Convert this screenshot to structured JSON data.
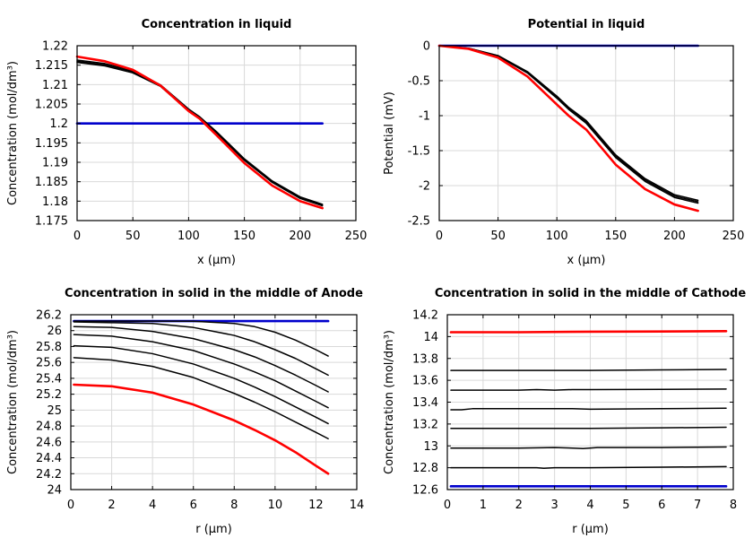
{
  "chart_data": [
    {
      "type": "line",
      "title": "Concentration in liquid",
      "xlabel": "x (µm)",
      "ylabel": "Concentration (mol/dm³)",
      "xlim": [
        0,
        250
      ],
      "ylim": [
        1.175,
        1.22
      ],
      "xticks": [
        0,
        50,
        100,
        150,
        200,
        250
      ],
      "yticks": [
        1.175,
        1.18,
        1.185,
        1.19,
        1.195,
        1.2,
        1.205,
        1.21,
        1.215,
        1.22
      ],
      "ytick_labels": [
        "1.175",
        "1.18",
        "1.185",
        "1.19",
        "1.195",
        "1.2",
        "1.205",
        "1.21",
        "1.215",
        "1.22"
      ],
      "grid": true,
      "series": [
        {
          "color": "#0000cc",
          "width": 2.6,
          "x": [
            0,
            220
          ],
          "y": [
            1.2,
            1.2
          ]
        },
        {
          "color": "#000000",
          "width": 1.5,
          "x": [
            0,
            25,
            50,
            75,
            100,
            110,
            125,
            150,
            175,
            200,
            220
          ],
          "y": [
            1.2157,
            1.2148,
            1.213,
            1.2095,
            1.2032,
            1.2012,
            1.1975,
            1.1905,
            1.1848,
            1.1807,
            1.1788
          ]
        },
        {
          "color": "#000000",
          "width": 1.5,
          "x": [
            0,
            25,
            50,
            75,
            100,
            110,
            125,
            150,
            175,
            200,
            220
          ],
          "y": [
            1.216,
            1.2151,
            1.2133,
            1.2097,
            1.2035,
            1.2015,
            1.1977,
            1.1907,
            1.185,
            1.1809,
            1.179
          ]
        },
        {
          "color": "#000000",
          "width": 1.5,
          "x": [
            0,
            25,
            50,
            75,
            100,
            110,
            125,
            150,
            175,
            200,
            220
          ],
          "y": [
            1.2163,
            1.2154,
            1.2136,
            1.2099,
            1.2037,
            1.2017,
            1.1979,
            1.1909,
            1.1852,
            1.1811,
            1.1792
          ]
        },
        {
          "color": "#ff0000",
          "width": 2.6,
          "x": [
            0,
            25,
            50,
            75,
            100,
            110,
            125,
            150,
            175,
            200,
            220
          ],
          "y": [
            1.2172,
            1.216,
            1.2138,
            1.2097,
            1.2032,
            1.2012,
            1.197,
            1.1898,
            1.184,
            1.18,
            1.1782
          ]
        }
      ]
    },
    {
      "type": "line",
      "title": "Potential in liquid",
      "xlabel": "x (µm)",
      "ylabel": "Potential (mV)",
      "xlim": [
        0,
        250
      ],
      "ylim": [
        -2.5,
        0
      ],
      "xticks": [
        0,
        50,
        100,
        150,
        200,
        250
      ],
      "yticks": [
        -2.5,
        -2,
        -1.5,
        -1,
        -0.5,
        0
      ],
      "ytick_labels": [
        "-2.5",
        "-2",
        "-1.5",
        "-1",
        "-0.5",
        "0"
      ],
      "grid": true,
      "series": [
        {
          "color": "#0000cc",
          "width": 2.6,
          "x": [
            0,
            220
          ],
          "y": [
            0,
            0
          ]
        },
        {
          "color": "#000000",
          "width": 1.5,
          "x": [
            0,
            25,
            50,
            75,
            100,
            110,
            125,
            150,
            175,
            200,
            220
          ],
          "y": [
            0,
            -0.035,
            -0.14,
            -0.37,
            -0.72,
            -0.88,
            -1.07,
            -1.56,
            -1.9,
            -2.13,
            -2.21
          ]
        },
        {
          "color": "#000000",
          "width": 1.5,
          "x": [
            0,
            25,
            50,
            75,
            100,
            110,
            125,
            150,
            175,
            200,
            220
          ],
          "y": [
            0,
            -0.037,
            -0.145,
            -0.38,
            -0.73,
            -0.89,
            -1.09,
            -1.58,
            -1.92,
            -2.15,
            -2.23
          ]
        },
        {
          "color": "#000000",
          "width": 1.5,
          "x": [
            0,
            25,
            50,
            75,
            100,
            110,
            125,
            150,
            175,
            200,
            220
          ],
          "y": [
            0,
            -0.04,
            -0.15,
            -0.39,
            -0.75,
            -0.91,
            -1.11,
            -1.6,
            -1.94,
            -2.17,
            -2.25
          ]
        },
        {
          "color": "#ff0000",
          "width": 2.6,
          "x": [
            0,
            25,
            50,
            75,
            100,
            110,
            125,
            150,
            175,
            200,
            220
          ],
          "y": [
            0,
            -0.045,
            -0.17,
            -0.44,
            -0.84,
            -1.0,
            -1.2,
            -1.7,
            -2.05,
            -2.27,
            -2.36
          ]
        }
      ]
    },
    {
      "type": "line",
      "title": "Concentration in solid in the middle of Anode",
      "xlabel": "r (µm)",
      "ylabel": "Concentration (mol/dm³)",
      "xlim": [
        0,
        14
      ],
      "ylim": [
        24,
        26.2
      ],
      "xticks": [
        0,
        2,
        4,
        6,
        8,
        10,
        12,
        14
      ],
      "yticks": [
        24,
        24.2,
        24.4,
        24.6,
        24.8,
        25,
        25.2,
        25.4,
        25.6,
        25.8,
        26,
        26.2
      ],
      "ytick_labels": [
        "24",
        "24.2",
        "24.4",
        "24.6",
        "24.8",
        "25",
        "25.2",
        "25.4",
        "25.6",
        "25.8",
        "26",
        "26.2"
      ],
      "grid": true,
      "series": [
        {
          "color": "#0000cc",
          "width": 2.6,
          "x": [
            0.15,
            12.6
          ],
          "y": [
            26.12,
            26.12
          ]
        },
        {
          "color": "#000000",
          "width": 1.5,
          "x": [
            0.15,
            2,
            4,
            6,
            8,
            9,
            10,
            11,
            12,
            12.6
          ],
          "y": [
            26.12,
            26.12,
            26.12,
            26.118,
            26.09,
            26.05,
            25.98,
            25.88,
            25.76,
            25.68
          ]
        },
        {
          "color": "#000000",
          "width": 1.5,
          "x": [
            0.15,
            2,
            4,
            6,
            8,
            9,
            10,
            11,
            12,
            12.6
          ],
          "y": [
            26.11,
            26.1,
            26.09,
            26.04,
            25.94,
            25.86,
            25.76,
            25.65,
            25.52,
            25.44
          ]
        },
        {
          "color": "#000000",
          "width": 1.5,
          "x": [
            0.15,
            2,
            4,
            6,
            8,
            9,
            10,
            11,
            12,
            12.6
          ],
          "y": [
            26.05,
            26.04,
            25.99,
            25.9,
            25.76,
            25.67,
            25.56,
            25.44,
            25.31,
            25.23
          ]
        },
        {
          "color": "#000000",
          "width": 1.5,
          "x": [
            0.15,
            2,
            4,
            6,
            8,
            9,
            10,
            11,
            12,
            12.6
          ],
          "y": [
            25.95,
            25.93,
            25.86,
            25.75,
            25.58,
            25.48,
            25.37,
            25.24,
            25.11,
            25.03
          ]
        },
        {
          "color": "#000000",
          "width": 1.5,
          "x": [
            0.15,
            2,
            4,
            6,
            8,
            9,
            10,
            11,
            12,
            12.6
          ],
          "y": [
            25.81,
            25.79,
            25.71,
            25.58,
            25.4,
            25.29,
            25.17,
            25.04,
            24.91,
            24.83
          ]
        },
        {
          "color": "#000000",
          "width": 1.5,
          "x": [
            0.15,
            2,
            4,
            6,
            8,
            9,
            10,
            11,
            12,
            12.6
          ],
          "y": [
            25.66,
            25.63,
            25.55,
            25.41,
            25.21,
            25.1,
            24.98,
            24.85,
            24.72,
            24.64
          ]
        },
        {
          "color": "#ff0000",
          "width": 2.6,
          "x": [
            0.15,
            2,
            4,
            6,
            8,
            9,
            10,
            11,
            12,
            12.6
          ],
          "y": [
            25.32,
            25.3,
            25.22,
            25.07,
            24.87,
            24.75,
            24.62,
            24.47,
            24.3,
            24.2
          ]
        }
      ]
    },
    {
      "type": "line",
      "title": "Concentration in solid in the middle of Cathode",
      "xlabel": "r (µm)",
      "ylabel": "Concentration (mol/dm³)",
      "xlim": [
        0,
        8
      ],
      "ylim": [
        12.6,
        14.2
      ],
      "xticks": [
        0,
        1,
        2,
        3,
        4,
        5,
        6,
        7,
        8
      ],
      "yticks": [
        12.6,
        12.8,
        13,
        13.2,
        13.4,
        13.6,
        13.8,
        14,
        14.2
      ],
      "ytick_labels": [
        "12.6",
        "12.8",
        "13",
        "13.2",
        "13.4",
        "13.6",
        "13.8",
        "14",
        "14.2"
      ],
      "grid": true,
      "series": [
        {
          "color": "#ff0000",
          "width": 2.6,
          "x": [
            0.1,
            2,
            4,
            6,
            7.8
          ],
          "y": [
            14.04,
            14.04,
            14.045,
            14.047,
            14.05
          ]
        },
        {
          "color": "#000000",
          "width": 1.5,
          "x": [
            0.1,
            2,
            4,
            6,
            7.8
          ],
          "y": [
            13.69,
            13.69,
            13.69,
            13.695,
            13.7
          ]
        },
        {
          "color": "#000000",
          "width": 1.5,
          "x": [
            0.1,
            2,
            2.5,
            3,
            3.5,
            4,
            6,
            7.8
          ],
          "y": [
            13.51,
            13.51,
            13.515,
            13.51,
            13.515,
            13.515,
            13.517,
            13.52
          ]
        },
        {
          "color": "#000000",
          "width": 1.5,
          "x": [
            0.1,
            0.4,
            0.7,
            2,
            3.5,
            4,
            6,
            7.8
          ],
          "y": [
            13.33,
            13.33,
            13.34,
            13.34,
            13.34,
            13.335,
            13.34,
            13.345
          ]
        },
        {
          "color": "#000000",
          "width": 1.5,
          "x": [
            0.1,
            2,
            4,
            6,
            7.8
          ],
          "y": [
            13.16,
            13.16,
            13.16,
            13.165,
            13.17
          ]
        },
        {
          "color": "#000000",
          "width": 1.5,
          "x": [
            0.1,
            2,
            3,
            3.5,
            3.8,
            4.2,
            6,
            7.8
          ],
          "y": [
            12.98,
            12.98,
            12.985,
            12.98,
            12.975,
            12.985,
            12.985,
            12.99
          ]
        },
        {
          "color": "#000000",
          "width": 1.5,
          "x": [
            0.1,
            2,
            2.5,
            2.7,
            3,
            4,
            6,
            7.8
          ],
          "y": [
            12.8,
            12.8,
            12.8,
            12.795,
            12.8,
            12.8,
            12.805,
            12.81
          ]
        },
        {
          "color": "#0000cc",
          "width": 2.6,
          "x": [
            0.1,
            7.8
          ],
          "y": [
            12.63,
            12.63
          ]
        }
      ]
    }
  ]
}
